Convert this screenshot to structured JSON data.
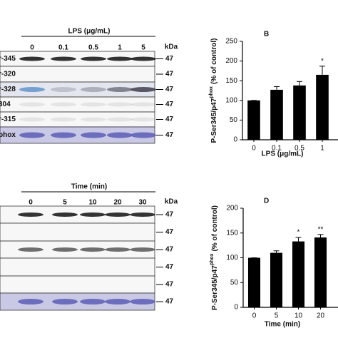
{
  "blots": [
    {
      "header": "LPS (μg/mL)",
      "lanes": [
        "0",
        "0.1",
        "0.5",
        "1",
        "5"
      ],
      "unit": "kDa",
      "rows": [
        {
          "label": "r-345",
          "marker": "47"
        },
        {
          "label": "r-320",
          "marker": "47"
        },
        {
          "label": "r-328",
          "marker": "47"
        },
        {
          "label": "304",
          "marker": "47"
        },
        {
          "label": "r-315",
          "marker": "47"
        },
        {
          "label": "phox",
          "marker": "47"
        }
      ]
    },
    {
      "header": "Time (min)",
      "lanes": [
        "0",
        "5",
        "10",
        "20",
        "30"
      ],
      "unit": "kDa",
      "rows": [
        {
          "marker": "47"
        },
        {
          "marker": "47"
        },
        {
          "marker": "47"
        },
        {
          "marker": "47"
        },
        {
          "marker": "47"
        },
        {
          "marker": "47"
        }
      ]
    }
  ],
  "chart_data": [
    {
      "type": "bar",
      "panel": "B",
      "ylabel": {
        "main": "P-Ser345/p47",
        "sup": "phox",
        "rest": "(% of control)"
      },
      "xlabel": "LPS (μg/mL)",
      "categories": [
        "0",
        "0.1",
        "0.5",
        "1"
      ],
      "values": [
        100,
        127,
        138,
        165
      ],
      "errors": [
        0,
        8,
        10,
        22
      ],
      "annotations": [
        null,
        null,
        null,
        "*"
      ],
      "color": "#000000",
      "ylim": [
        0,
        250
      ],
      "yticks": [
        0,
        50,
        100,
        150,
        200,
        250
      ]
    },
    {
      "type": "bar",
      "panel": "D",
      "ylabel": {
        "main": "P-Ser345/p47",
        "sup": "phox",
        "rest": "(% of control)"
      },
      "xlabel": "Time (min)",
      "categories": [
        "0",
        "5",
        "10",
        "20"
      ],
      "values": [
        100,
        110,
        133,
        141
      ],
      "errors": [
        0,
        4,
        8,
        6
      ],
      "annotations": [
        null,
        null,
        "*",
        "**"
      ],
      "color": "#000000",
      "ylim": [
        0,
        200
      ],
      "yticks": [
        0,
        50,
        100,
        150,
        200
      ]
    }
  ]
}
